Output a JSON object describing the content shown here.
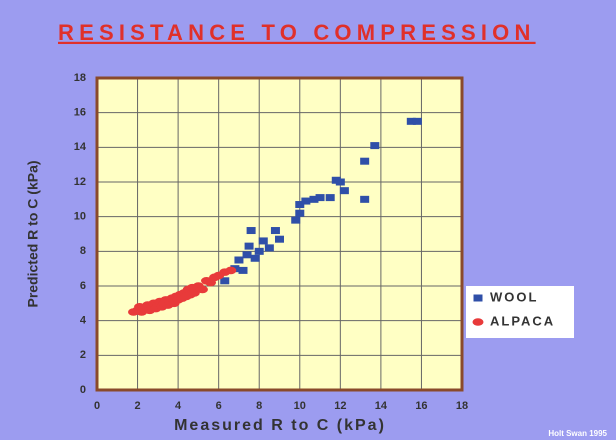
{
  "chart_data": {
    "type": "scatter",
    "title": "RESISTANCE TO COMPRESSION",
    "x_label": "Measured R to C (kPa)",
    "y_label": "Predicted R to C (kPa)",
    "credit": "Holt Swan 1995",
    "xlim": [
      0,
      18
    ],
    "xticks": [
      0,
      2,
      4,
      6,
      8,
      10,
      12,
      14,
      16,
      18
    ],
    "ylim": [
      0,
      18
    ],
    "yticks": [
      0,
      2,
      4,
      6,
      8,
      10,
      12,
      14,
      16,
      18
    ],
    "grid": true,
    "legend": "right",
    "series": [
      {
        "name": "WOOL",
        "color": "#2f4fa8",
        "marker": "square",
        "x": [
          6.3,
          6.8,
          7.0,
          7.2,
          7.4,
          7.5,
          7.6,
          7.8,
          8.0,
          8.2,
          8.5,
          8.8,
          9.0,
          9.8,
          10.0,
          10.0,
          10.3,
          10.7,
          11.0,
          11.5,
          11.8,
          12.0,
          12.2,
          13.2,
          13.2,
          13.7,
          15.5,
          15.8
        ],
        "values": [
          6.3,
          7.0,
          7.5,
          6.9,
          7.8,
          8.3,
          9.2,
          7.6,
          8.0,
          8.6,
          8.2,
          9.2,
          8.7,
          9.8,
          10.7,
          10.2,
          10.9,
          11.0,
          11.1,
          11.1,
          12.1,
          12.0,
          11.5,
          11.0,
          13.2,
          14.1,
          15.5,
          15.5
        ]
      },
      {
        "name": "ALPACA",
        "color": "#e83a3a",
        "marker": "ellipse",
        "x": [
          1.8,
          2.0,
          2.1,
          2.2,
          2.3,
          2.5,
          2.6,
          2.7,
          2.8,
          2.9,
          3.0,
          3.1,
          3.2,
          3.3,
          3.4,
          3.5,
          3.6,
          3.7,
          3.8,
          3.9,
          4.0,
          4.1,
          4.2,
          4.3,
          4.4,
          4.5,
          4.6,
          4.7,
          4.8,
          5.0,
          5.2,
          5.4,
          5.6,
          5.8,
          6.0,
          6.3,
          6.6
        ],
        "values": [
          4.5,
          4.6,
          4.8,
          4.5,
          4.7,
          4.9,
          4.6,
          4.8,
          5.0,
          4.7,
          4.9,
          5.1,
          4.8,
          5.0,
          5.2,
          4.9,
          5.1,
          5.3,
          5.0,
          5.4,
          5.2,
          5.5,
          5.3,
          5.6,
          5.4,
          5.8,
          5.5,
          5.9,
          5.6,
          6.0,
          5.8,
          6.3,
          6.2,
          6.5,
          6.6,
          6.8,
          6.9
        ]
      }
    ]
  }
}
